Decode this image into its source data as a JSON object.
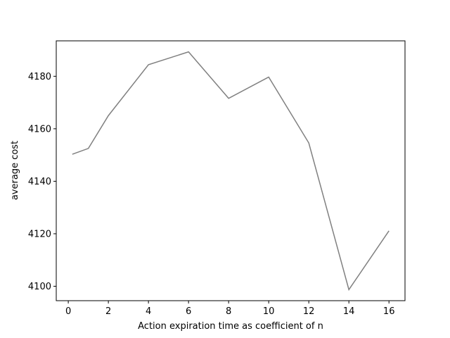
{
  "chart_data": {
    "type": "line",
    "title": "",
    "xlabel": "Action expiration time as coefficient of n",
    "ylabel": "average cost",
    "xlim": [
      -0.6,
      16.8
    ],
    "ylim": [
      4094.5,
      4193.5
    ],
    "xticks": [
      0,
      2,
      4,
      6,
      8,
      10,
      12,
      14,
      16
    ],
    "yticks": [
      4100,
      4120,
      4140,
      4160,
      4180
    ],
    "grid": false,
    "legend": "none",
    "line_color": "#808080",
    "series": [
      {
        "x": [
          0.2,
          1,
          2,
          4,
          6,
          8,
          10,
          12,
          14,
          16
        ],
        "values": [
          4150.3,
          4152.5,
          4165,
          4184.4,
          4189.3,
          4171.6,
          4179.7,
          4154.6,
          4098.7,
          4121.1
        ]
      }
    ]
  }
}
